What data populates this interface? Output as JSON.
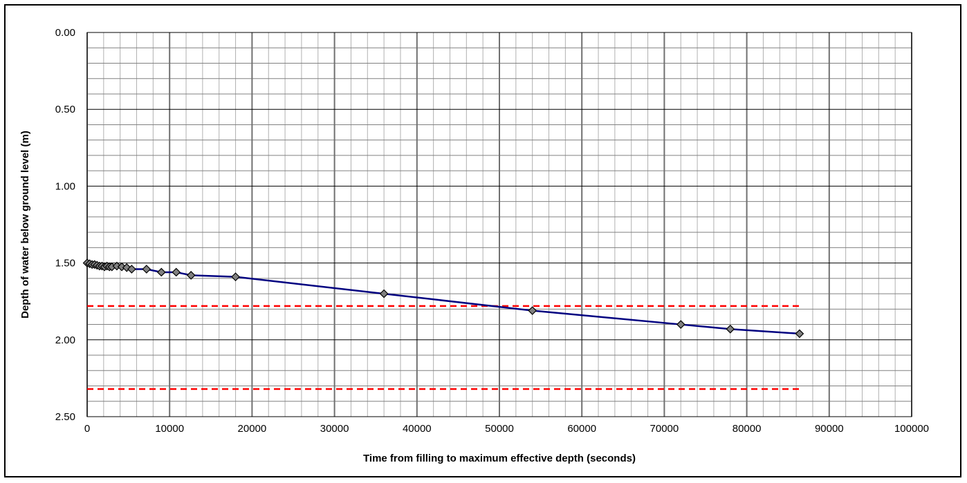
{
  "chart_data": {
    "type": "scatter",
    "title": "",
    "xlabel": "Time from filling to maximum effective depth (seconds)",
    "ylabel": "Depth of water below ground level (m)",
    "xlim": [
      0,
      100000
    ],
    "ylim": [
      0,
      2.5
    ],
    "y_inverted": true,
    "grid": true,
    "legend": "none",
    "x_ticks": [
      "0",
      "10000",
      "20000",
      "30000",
      "40000",
      "50000",
      "60000",
      "70000",
      "80000",
      "90000",
      "100000"
    ],
    "y_ticks": [
      "0.00",
      "0.50",
      "1.00",
      "1.50",
      "2.00",
      "2.50"
    ],
    "series": [
      {
        "color": "#000080",
        "marker": "diamond",
        "marker_color": "#808080",
        "x": [
          0,
          300,
          600,
          900,
          1200,
          1500,
          1800,
          2100,
          2400,
          2700,
          3000,
          3600,
          4200,
          4800,
          5400,
          7200,
          9000,
          10800,
          12600,
          18000,
          36000,
          54000,
          72000,
          78000,
          86400
        ],
        "y": [
          1.5,
          1.505,
          1.51,
          1.51,
          1.515,
          1.52,
          1.52,
          1.525,
          1.52,
          1.525,
          1.525,
          1.52,
          1.525,
          1.53,
          1.54,
          1.54,
          1.56,
          1.56,
          1.58,
          1.59,
          1.7,
          1.81,
          1.9,
          1.93,
          1.96
        ]
      }
    ],
    "reference_lines": [
      {
        "y": 1.78,
        "color": "#ff0000",
        "style": "dashed",
        "x_end": 86400
      },
      {
        "y": 2.32,
        "color": "#ff0000",
        "style": "dashed",
        "x_end": 86400
      }
    ]
  }
}
